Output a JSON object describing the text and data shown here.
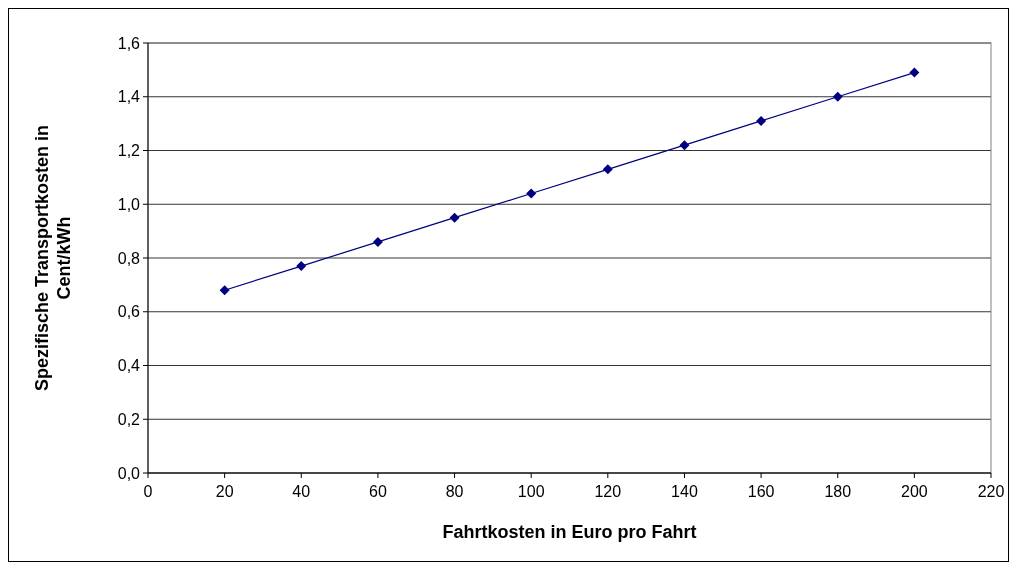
{
  "chart_data": {
    "type": "line",
    "xlabel": "Fahrtkosten in Euro pro Fahrt",
    "ylabel": "Spezifische Transportkosten in Cent/kWh",
    "x": [
      20,
      40,
      60,
      80,
      100,
      120,
      140,
      160,
      180,
      200
    ],
    "series": [
      {
        "color": "#000080",
        "values": [
          0.68,
          0.77,
          0.86,
          0.95,
          1.04,
          1.13,
          1.22,
          1.31,
          1.4,
          1.49
        ]
      }
    ],
    "xlim": [
      0,
      220
    ],
    "xticks": [
      0,
      20,
      40,
      60,
      80,
      100,
      120,
      140,
      160,
      180,
      200,
      220
    ],
    "ylim": [
      0,
      1.6
    ],
    "yticks": [
      {
        "value": 0,
        "label": "0,0"
      },
      {
        "value": 0.2,
        "label": "0,2"
      },
      {
        "value": 0.4,
        "label": "0,4"
      },
      {
        "value": 0.6,
        "label": "0,6"
      },
      {
        "value": 0.8,
        "label": "0,8"
      },
      {
        "value": 1.0,
        "label": "1,0"
      },
      {
        "value": 1.2,
        "label": "1,2"
      },
      {
        "value": 1.4,
        "label": "1,4"
      },
      {
        "value": 1.6,
        "label": "1,6"
      }
    ],
    "grid": "y",
    "marker": "diamond",
    "line_style": "solid"
  }
}
